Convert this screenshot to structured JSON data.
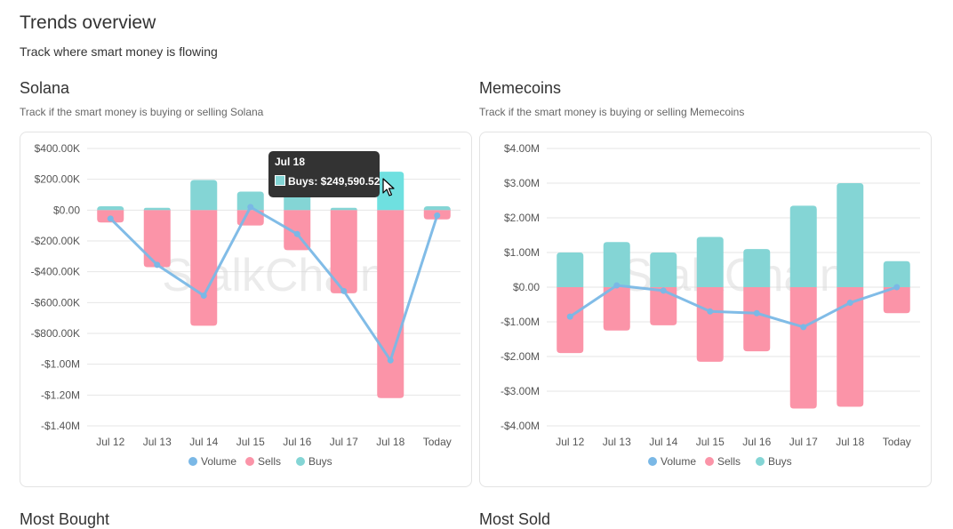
{
  "page": {
    "title": "Trends overview",
    "subtitle": "Track where smart money is flowing"
  },
  "sections": [
    {
      "title": "Solana",
      "subtitle": "Track if the smart money is buying or selling Solana",
      "watermark": "StalkChain",
      "legend": [
        "Volume",
        "Sells",
        "Buys"
      ],
      "tooltip": {
        "title": "Jul 18",
        "label": "Buys: $249,590.52"
      }
    },
    {
      "title": "Memecoins",
      "subtitle": "Track if the smart money is buying or selling Memecoins",
      "watermark": "StalkChain",
      "legend": [
        "Volume",
        "Sells",
        "Buys"
      ]
    }
  ],
  "bottom": {
    "left_title": "Most Bought",
    "right_title": "Most Sold"
  },
  "colors": {
    "buys": "#84d5d5",
    "buys_highlight": "#6fe0e0",
    "sells": "#fb94a8",
    "volume": "#7ab8e6",
    "grid": "#e6e6e6"
  },
  "chart_data": [
    {
      "type": "bar",
      "stacked": true,
      "categories": [
        "Jul 12",
        "Jul 13",
        "Jul 14",
        "Jul 15",
        "Jul 16",
        "Jul 17",
        "Jul 18",
        "Today"
      ],
      "y_ticks": [
        "$400.00K",
        "$200.00K",
        "$0.00",
        "-$200.00K",
        "-$400.00K",
        "-$600.00K",
        "-$800.00K",
        "-$1.00M",
        "-$1.20M",
        "-$1.40M"
      ],
      "ylim": [
        -1400000,
        400000
      ],
      "series": [
        {
          "name": "Buys",
          "kind": "bar",
          "values": [
            25000,
            15000,
            195000,
            120000,
            105000,
            15000,
            249590.52,
            25000
          ]
        },
        {
          "name": "Sells",
          "kind": "bar",
          "values": [
            -80000,
            -370000,
            -750000,
            -100000,
            -260000,
            -540000,
            -1220000,
            -60000
          ]
        },
        {
          "name": "Volume",
          "kind": "line",
          "values": [
            -55000,
            -355000,
            -555000,
            20000,
            -155000,
            -525000,
            -975000,
            -35000
          ]
        }
      ],
      "legend_position": "bottom",
      "grid": true
    },
    {
      "type": "bar",
      "stacked": true,
      "categories": [
        "Jul 12",
        "Jul 13",
        "Jul 14",
        "Jul 15",
        "Jul 16",
        "Jul 17",
        "Jul 18",
        "Today"
      ],
      "y_ticks": [
        "$4.00M",
        "$3.00M",
        "$2.00M",
        "$1.00M",
        "$0.00",
        "-$1.00M",
        "-$2.00M",
        "-$3.00M",
        "-$4.00M"
      ],
      "ylim": [
        -4000000,
        4000000
      ],
      "series": [
        {
          "name": "Buys",
          "kind": "bar",
          "values": [
            1000000,
            1300000,
            1000000,
            1450000,
            1100000,
            2350000,
            3000000,
            750000
          ]
        },
        {
          "name": "Sells",
          "kind": "bar",
          "values": [
            -1900000,
            -1250000,
            -1100000,
            -2150000,
            -1850000,
            -3500000,
            -3450000,
            -750000
          ]
        },
        {
          "name": "Volume",
          "kind": "line",
          "values": [
            -850000,
            50000,
            -100000,
            -700000,
            -750000,
            -1150000,
            -450000,
            0
          ]
        }
      ],
      "legend_position": "bottom",
      "grid": true
    }
  ]
}
